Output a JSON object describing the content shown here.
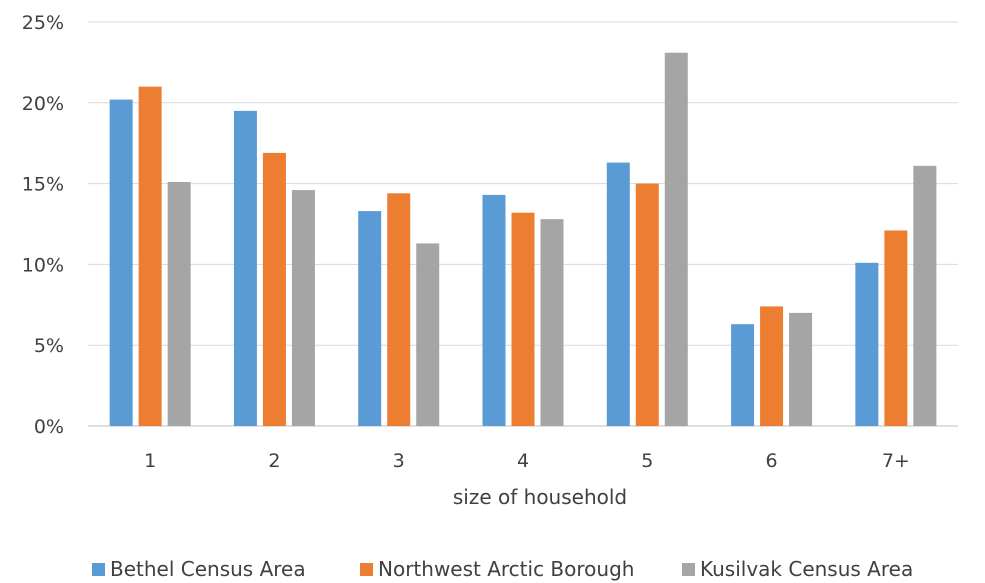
{
  "chart_data": {
    "type": "bar",
    "title": "",
    "xlabel": "size of household",
    "ylabel": "",
    "categories": [
      "1",
      "2",
      "3",
      "4",
      "5",
      "6",
      "7+"
    ],
    "series": [
      {
        "name": "Bethel Census Area",
        "color": "#5B9BD5",
        "values": [
          20.2,
          19.5,
          13.3,
          14.3,
          16.3,
          6.3,
          10.1
        ]
      },
      {
        "name": "Northwest Arctic Borough",
        "color": "#ED7D31",
        "values": [
          21.0,
          16.9,
          14.4,
          13.2,
          15.0,
          7.4,
          12.1
        ]
      },
      {
        "name": "Kusilvak Census Area",
        "color": "#A5A5A5",
        "values": [
          15.1,
          14.6,
          11.3,
          12.8,
          23.1,
          7.0,
          16.1
        ]
      }
    ],
    "ylim": [
      0,
      25
    ],
    "yticks": [
      "0%",
      "5%",
      "10%",
      "15%",
      "20%",
      "25%"
    ],
    "ytick_values": [
      0,
      5,
      10,
      15,
      20,
      25
    ],
    "grid": true,
    "legend_position": "bottom"
  }
}
